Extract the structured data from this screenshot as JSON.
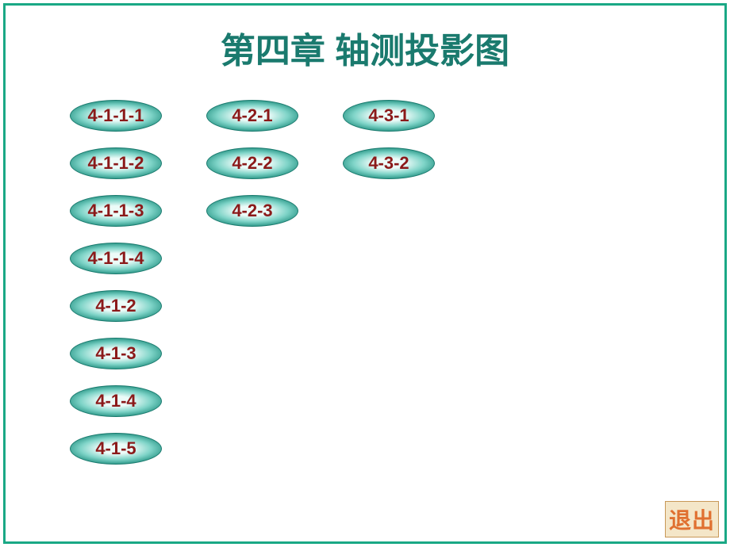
{
  "title": "第四章  轴测投影图",
  "title_color": "#1a7a6e",
  "title_fontsize": 44,
  "border_color": "#1aa885",
  "background_color": "#ffffff",
  "pill_style": {
    "width": 116,
    "height": 40,
    "text_color": "#8b1a1a",
    "text_fontsize": 22,
    "border_color": "#1a7a6e",
    "gradient_outer": "#1a8a7a",
    "gradient_mid": "#7fd4c8",
    "gradient_inner": "#ecfbf8"
  },
  "columns": [
    {
      "items": [
        "4-1-1-1",
        "4-1-1-2",
        "4-1-1-3",
        "4-1-1-4",
        "4-1-2",
        "4-1-3",
        "4-1-4",
        "4-1-5"
      ]
    },
    {
      "items": [
        "4-2-1",
        "4-2-2",
        "4-2-3"
      ]
    },
    {
      "items": [
        "4-3-1",
        "4-3-2"
      ]
    }
  ],
  "exit": {
    "label": "退出",
    "text_color": "#e07030",
    "bg_color": "#f4e6c8",
    "border_color": "#c89858",
    "fontsize": 28
  }
}
